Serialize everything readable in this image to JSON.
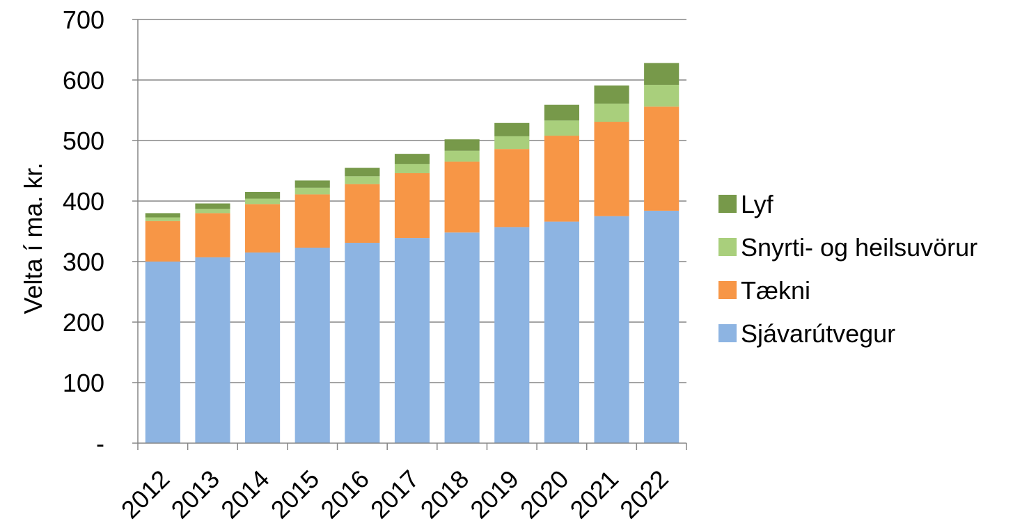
{
  "chart_data": {
    "type": "bar",
    "stacked": true,
    "categories": [
      "2012",
      "2013",
      "2014",
      "2015",
      "2016",
      "2017",
      "2018",
      "2019",
      "2020",
      "2021",
      "2022"
    ],
    "series": [
      {
        "name": "Sjávarútvegur",
        "color": "#8DB4E2",
        "values": [
          300,
          307,
          315,
          323,
          331,
          339,
          348,
          357,
          366,
          375,
          384
        ]
      },
      {
        "name": "Tækni",
        "color": "#F79646",
        "values": [
          67,
          73,
          80,
          88,
          97,
          107,
          117,
          129,
          142,
          156,
          172
        ]
      },
      {
        "name": "Snyrti- og heilsuvörur",
        "color": "#A9CF7C",
        "values": [
          6,
          7,
          9,
          11,
          13,
          15,
          18,
          21,
          25,
          30,
          36
        ]
      },
      {
        "name": "Lyf",
        "color": "#77994A",
        "values": [
          7,
          9,
          11,
          12,
          14,
          17,
          19,
          22,
          26,
          30,
          36
        ]
      }
    ],
    "ylabel": "Velta í ma. kr.",
    "xlabel": "",
    "ylim": [
      0,
      700
    ],
    "ytick_labels": [
      "-",
      "100",
      "200",
      "300",
      "400",
      "500",
      "600",
      "700"
    ],
    "grid": true,
    "legend_position": "right"
  }
}
